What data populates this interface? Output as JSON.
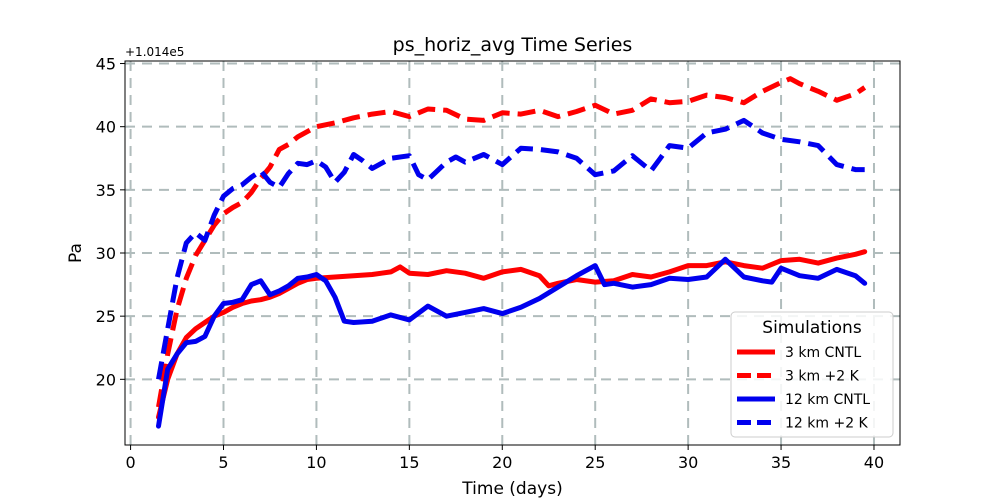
{
  "chart_data": {
    "type": "line",
    "title": "ps_horiz_avg Time Series",
    "xlabel": "Time (days)",
    "ylabel": "Pa",
    "y_offset_label": "+1.014e5",
    "xlim": [
      -0.3,
      41.4
    ],
    "ylim": [
      14.8,
      45.2
    ],
    "x_ticks": [
      0,
      5,
      10,
      15,
      20,
      25,
      30,
      35,
      40
    ],
    "y_ticks": [
      20,
      25,
      30,
      35,
      40,
      45
    ],
    "grid": true,
    "legend": {
      "title": "Simulations",
      "placement": "lower-right"
    },
    "series": [
      {
        "name": "3 km CNTL",
        "color": "#ff0000",
        "style": "solid",
        "x": [
          1.5,
          2,
          2.5,
          3,
          3.5,
          4,
          4.5,
          5,
          5.5,
          6,
          6.5,
          7,
          7.5,
          8,
          8.5,
          9,
          9.5,
          10,
          11,
          12,
          13,
          14,
          14.5,
          15,
          16,
          17,
          18,
          19,
          20,
          21,
          22,
          22.5,
          23,
          24,
          25,
          26,
          27,
          28,
          29,
          30,
          31,
          32,
          33,
          34,
          35,
          36,
          37,
          38,
          39,
          39.5
        ],
        "y": [
          17.0,
          20.0,
          22.0,
          23.3,
          24.0,
          24.5,
          25.0,
          25.3,
          25.7,
          26.0,
          26.2,
          26.3,
          26.5,
          26.8,
          27.2,
          27.6,
          27.9,
          28.0,
          28.1,
          28.2,
          28.3,
          28.5,
          28.9,
          28.4,
          28.3,
          28.6,
          28.4,
          28.0,
          28.5,
          28.7,
          28.2,
          27.4,
          27.6,
          27.9,
          27.7,
          27.8,
          28.3,
          28.1,
          28.5,
          29.0,
          29.0,
          29.3,
          29.0,
          28.8,
          29.4,
          29.5,
          29.2,
          29.6,
          29.9,
          30.1
        ]
      },
      {
        "name": "3 km +2 K",
        "color": "#ff0000",
        "style": "dashed",
        "x": [
          1.5,
          2,
          2.5,
          3,
          3.5,
          4,
          4.5,
          5,
          5.5,
          6,
          6.5,
          7,
          7.5,
          8,
          8.5,
          9,
          9.5,
          10,
          11,
          12,
          13,
          14,
          15,
          16,
          17,
          18,
          19,
          20,
          21,
          22,
          23,
          24,
          25,
          26,
          27,
          28,
          29,
          30,
          31,
          32,
          33,
          34,
          35,
          35.5,
          36,
          37,
          38,
          39,
          39.5
        ],
        "y": [
          17.8,
          22.0,
          25.5,
          28.0,
          29.8,
          31.0,
          32.2,
          33.1,
          33.6,
          34.0,
          34.8,
          35.9,
          36.8,
          38.2,
          38.6,
          39.2,
          39.6,
          40.0,
          40.3,
          40.7,
          41.0,
          41.2,
          40.8,
          41.4,
          41.3,
          40.6,
          40.5,
          41.1,
          41.0,
          41.3,
          40.8,
          41.2,
          41.7,
          41.0,
          41.3,
          42.2,
          41.9,
          42.0,
          42.5,
          42.3,
          41.9,
          42.8,
          43.5,
          43.8,
          43.4,
          42.8,
          42.1,
          42.6,
          43.1
        ]
      },
      {
        "name": "12 km CNTL",
        "color": "#0000ee",
        "style": "solid",
        "x": [
          1.5,
          2,
          2.5,
          3,
          3.5,
          4,
          4.5,
          5,
          5.5,
          6,
          6.5,
          7,
          7.5,
          8,
          8.5,
          9,
          9.5,
          10,
          10.5,
          11,
          11.5,
          12,
          13,
          14,
          15,
          16,
          17,
          18,
          19,
          20,
          21,
          22,
          23,
          24,
          25,
          25.5,
          26,
          27,
          28,
          29,
          30,
          31,
          32,
          33,
          34,
          34.5,
          35,
          36,
          37,
          38,
          39,
          39.5
        ],
        "y": [
          16.3,
          20.8,
          22.0,
          22.9,
          23.0,
          23.4,
          25.0,
          26.0,
          26.1,
          26.3,
          27.5,
          27.8,
          26.7,
          27.0,
          27.4,
          28.0,
          28.1,
          28.3,
          27.8,
          26.5,
          24.6,
          24.5,
          24.6,
          25.1,
          24.7,
          25.8,
          25.0,
          25.3,
          25.6,
          25.2,
          25.7,
          26.4,
          27.3,
          28.2,
          29.0,
          27.5,
          27.6,
          27.3,
          27.5,
          28.0,
          27.9,
          28.1,
          29.5,
          28.1,
          27.8,
          27.7,
          28.8,
          28.2,
          28.0,
          28.7,
          28.2,
          27.6
        ]
      },
      {
        "name": "12 km +2 K",
        "color": "#0000ee",
        "style": "dashed",
        "x": [
          1.5,
          2,
          2.5,
          3,
          3.5,
          4,
          4.5,
          5,
          5.5,
          6,
          6.5,
          7,
          7.5,
          8,
          8.5,
          9,
          9.5,
          10,
          10.5,
          11,
          11.5,
          12,
          12.5,
          13,
          13.5,
          14,
          15,
          15.5,
          16,
          16.5,
          17,
          17.5,
          18,
          19,
          20,
          21,
          22,
          23,
          24,
          25,
          26,
          27,
          28,
          28.5,
          29,
          30,
          31,
          32,
          33,
          34,
          35,
          36,
          37,
          38,
          39,
          39.5
        ],
        "y": [
          20.0,
          24.0,
          28.0,
          30.8,
          31.6,
          31.0,
          33.0,
          34.5,
          35.1,
          35.4,
          36.0,
          36.5,
          35.6,
          35.2,
          36.3,
          37.1,
          37.0,
          37.3,
          36.8,
          35.6,
          36.4,
          37.8,
          37.3,
          36.7,
          37.1,
          37.5,
          37.7,
          36.2,
          35.8,
          36.5,
          37.2,
          37.6,
          37.2,
          37.8,
          37.0,
          38.3,
          38.2,
          38.0,
          37.5,
          36.2,
          36.5,
          37.7,
          36.5,
          37.5,
          38.5,
          38.3,
          39.5,
          39.8,
          40.5,
          39.5,
          39.0,
          38.8,
          38.5,
          37.0,
          36.6,
          36.6
        ]
      }
    ]
  }
}
